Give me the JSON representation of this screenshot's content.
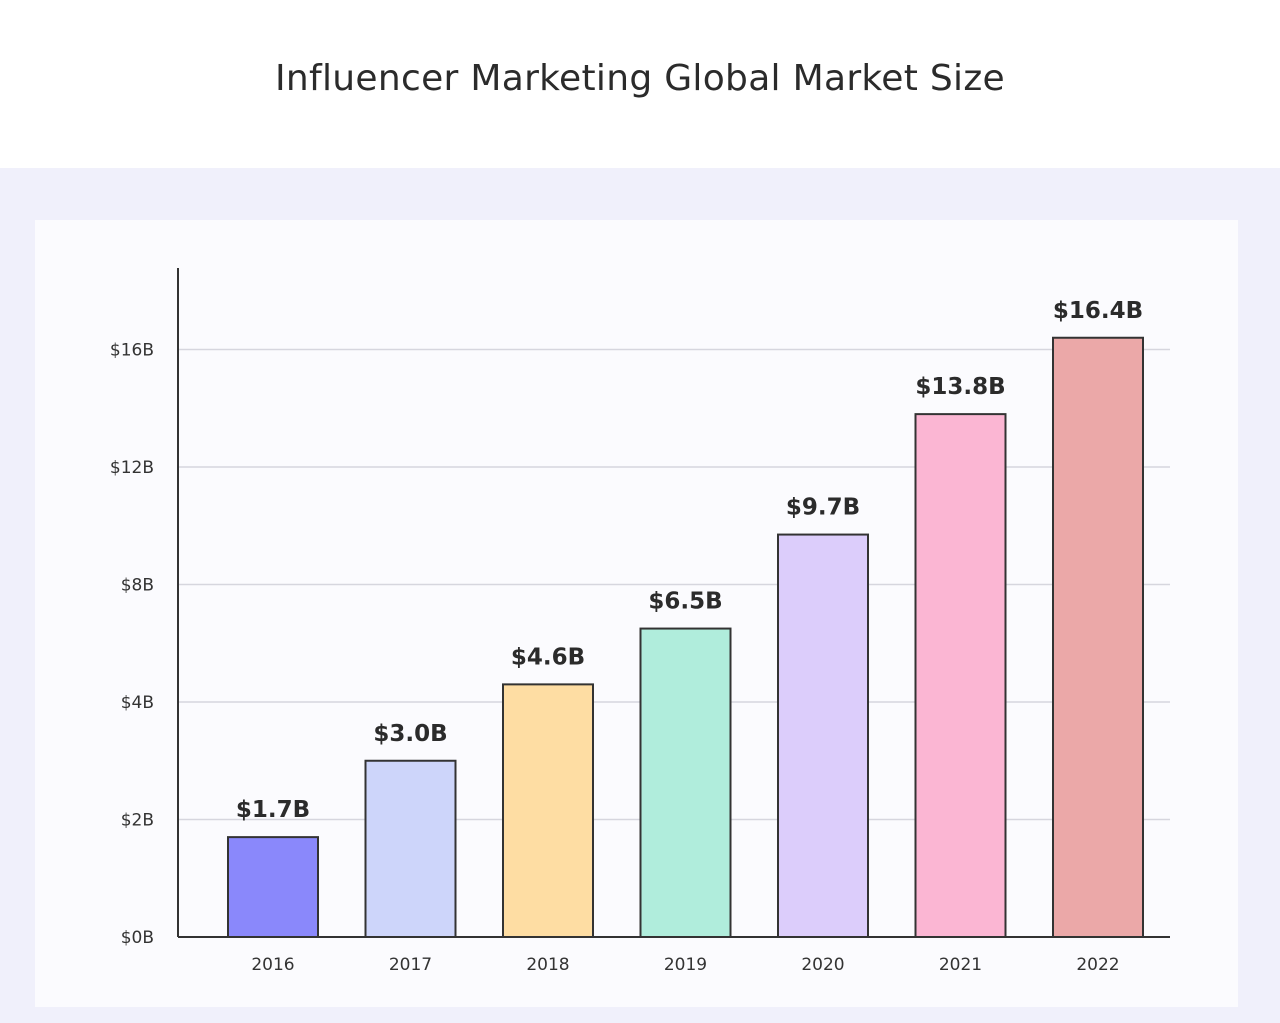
{
  "chart_data": {
    "type": "bar",
    "title": "Influencer Marketing Global Market Size",
    "xlabel": "",
    "ylabel": "",
    "categories": [
      "2016",
      "2017",
      "2018",
      "2019",
      "2020",
      "2021",
      "2022"
    ],
    "values": [
      1.7,
      3.0,
      4.6,
      6.5,
      9.7,
      13.8,
      16.4
    ],
    "value_labels": [
      "$1.7B",
      "$3.0B",
      "$4.6B",
      "$6.5B",
      "$9.7B",
      "$13.8B",
      "$16.4B"
    ],
    "y_ticks": [
      {
        "value": 0,
        "label": "$0B"
      },
      {
        "value": 2,
        "label": "$2B"
      },
      {
        "value": 4,
        "label": "$4B"
      },
      {
        "value": 8,
        "label": "$8B"
      },
      {
        "value": 12,
        "label": "$12B"
      },
      {
        "value": 16,
        "label": "$16B"
      }
    ],
    "y_scale": "nonlinear (ticks at 0,2,4,8,12,16 spaced evenly)",
    "grid": true,
    "legend": "none",
    "colors": [
      "#8a88fb",
      "#cdd5fa",
      "#fedda3",
      "#b0eddc",
      "#dccdfb",
      "#fbb6d3",
      "#eba8a8"
    ]
  }
}
